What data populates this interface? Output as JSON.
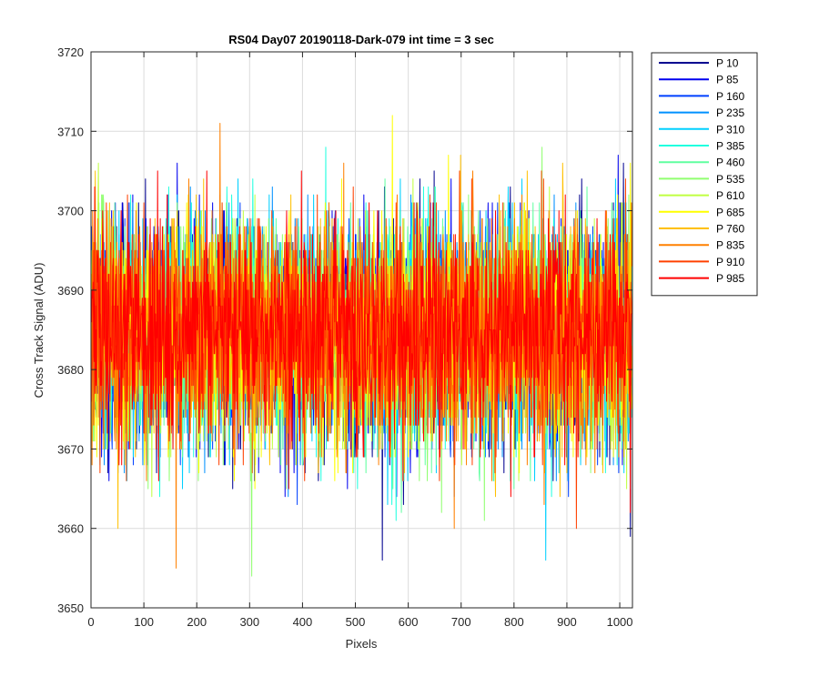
{
  "chart_data": {
    "type": "line",
    "title": "RS04 Day07 20190118-Dark-079 int time = 3 sec",
    "xlabel": "Pixels",
    "ylabel": "Cross Track Signal (ADU)",
    "xlim": [
      0,
      1024
    ],
    "ylim": [
      3650,
      3720
    ],
    "xticks": [
      0,
      100,
      200,
      300,
      400,
      500,
      600,
      700,
      800,
      900,
      1000
    ],
    "yticks": [
      3650,
      3660,
      3670,
      3680,
      3690,
      3700,
      3710,
      3720
    ],
    "grid": true,
    "legend_position": "outside-right",
    "n_points_per_series": 1024,
    "series": [
      {
        "name": "P 10",
        "color": "#00008F",
        "mean": 3684.5,
        "noise_sd": 7.0,
        "seed": 11
      },
      {
        "name": "P 85",
        "color": "#0000EF",
        "mean": 3684.5,
        "noise_sd": 7.0,
        "seed": 23
      },
      {
        "name": "P 160",
        "color": "#0040FF",
        "mean": 3684.5,
        "noise_sd": 7.0,
        "seed": 37
      },
      {
        "name": "P 235",
        "color": "#0090FF",
        "mean": 3684.5,
        "noise_sd": 7.0,
        "seed": 41
      },
      {
        "name": "P 310",
        "color": "#00D0FF",
        "mean": 3684.5,
        "noise_sd": 7.0,
        "seed": 53
      },
      {
        "name": "P 385",
        "color": "#20FFDF",
        "mean": 3684.5,
        "noise_sd": 7.0,
        "seed": 67
      },
      {
        "name": "P 460",
        "color": "#60FFA0",
        "mean": 3684.5,
        "noise_sd": 7.0,
        "seed": 71
      },
      {
        "name": "P 535",
        "color": "#90FF70",
        "mean": 3684.5,
        "noise_sd": 7.0,
        "seed": 83
      },
      {
        "name": "P 610",
        "color": "#C0FF40",
        "mean": 3684.5,
        "noise_sd": 7.0,
        "seed": 97
      },
      {
        "name": "P 685",
        "color": "#FFFF00",
        "mean": 3684.5,
        "noise_sd": 7.0,
        "seed": 101
      },
      {
        "name": "P 760",
        "color": "#FFC000",
        "mean": 3684.5,
        "noise_sd": 7.0,
        "seed": 113
      },
      {
        "name": "P 835",
        "color": "#FF8000",
        "mean": 3684.5,
        "noise_sd": 7.0,
        "seed": 127
      },
      {
        "name": "P 910",
        "color": "#FF4000",
        "mean": 3684.5,
        "noise_sd": 7.0,
        "seed": 131
      },
      {
        "name": "P 985",
        "color": "#FF0000",
        "mean": 3684.5,
        "noise_sd": 7.0,
        "seed": 149
      }
    ],
    "extremes": [
      {
        "series": "P 685",
        "x": 570,
        "y": 3712
      },
      {
        "series": "P 835",
        "x": 244,
        "y": 3711
      },
      {
        "series": "P 835",
        "x": 161,
        "y": 3655
      },
      {
        "series": "P 535",
        "x": 304,
        "y": 3654
      },
      {
        "series": "P 10",
        "x": 551,
        "y": 3656
      },
      {
        "series": "P 310",
        "x": 860,
        "y": 3656
      },
      {
        "series": "P 10",
        "x": 1020,
        "y": 3659
      }
    ]
  }
}
